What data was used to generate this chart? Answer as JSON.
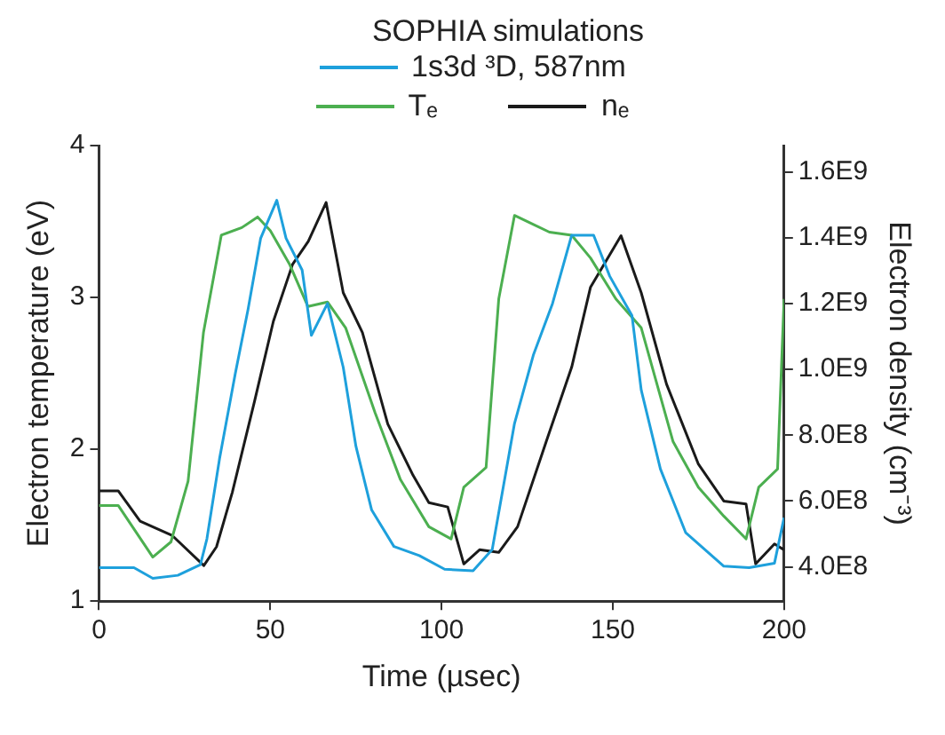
{
  "chart_data": {
    "type": "line",
    "title": "SOPHIA simulations",
    "xlabel": "Time (µsec)",
    "ylabel": "Electron temperature (eV)",
    "y2label": "Electron density (cm⁻³)",
    "xlim": [
      0,
      200
    ],
    "xticks": [
      0,
      50,
      100,
      150,
      200
    ],
    "ylim": [
      1,
      4
    ],
    "yticks": [
      1,
      2,
      3,
      4
    ],
    "y2lim": [
      296000000,
      1680000000
    ],
    "y2ticks": [
      {
        "value": 400000000,
        "label": "4.0E8"
      },
      {
        "value": 600000000,
        "label": "6.0E8"
      },
      {
        "value": 800000000,
        "label": "8.0E8"
      },
      {
        "value": 1000000000,
        "label": "1.0E9"
      },
      {
        "value": 1200000000,
        "label": "1.2E9"
      },
      {
        "value": 1400000000,
        "label": "1.4E9"
      },
      {
        "value": 1600000000,
        "label": "1.6E9"
      }
    ],
    "grid": false,
    "legend": "top",
    "marker": "none",
    "line_style": "solid",
    "series": [
      {
        "name": "1s3d ³D, 587nm",
        "color": "#1ea0dc",
        "x": [
          0,
          10.2,
          15.7,
          23,
          29.6,
          31.5,
          35.2,
          39.8,
          43.5,
          47.2,
          51.9,
          54.6,
          59.3,
          62,
          66.7,
          71.3,
          75,
          79.6,
          86.1,
          93.5,
          100.9,
          109.2,
          114.8,
          121.3,
          126.8,
          132.4,
          138,
          144.4,
          149.1,
          155.6,
          158.3,
          163.9,
          171.3,
          182.4,
          189.8,
          197.2,
          200
        ],
        "values": [
          1.22,
          1.22,
          1.15,
          1.17,
          1.24,
          1.41,
          1.94,
          2.5,
          2.92,
          3.39,
          3.64,
          3.39,
          3.18,
          2.75,
          2.96,
          2.54,
          2.02,
          1.6,
          1.36,
          1.3,
          1.21,
          1.2,
          1.34,
          2.17,
          2.62,
          2.96,
          3.41,
          3.41,
          3.14,
          2.88,
          2.39,
          1.87,
          1.45,
          1.23,
          1.22,
          1.25,
          1.55
        ]
      },
      {
        "name": "Tₑ",
        "color": "#4caf50",
        "x": [
          0,
          5.6,
          15.7,
          21,
          26,
          30.5,
          35.7,
          41.7,
          46.3,
          50,
          55.6,
          61,
          66.7,
          72,
          80.6,
          88,
          96.3,
          102.8,
          106.5,
          113,
          116.7,
          121.3,
          131.5,
          138,
          143.5,
          150.9,
          158.3,
          167.6,
          175,
          182.4,
          188.9,
          192.6,
          198.1,
          200
        ],
        "values": [
          1.63,
          1.63,
          1.29,
          1.39,
          1.79,
          2.77,
          3.41,
          3.46,
          3.53,
          3.44,
          3.22,
          2.94,
          2.97,
          2.8,
          2.24,
          1.8,
          1.49,
          1.41,
          1.75,
          1.88,
          2.99,
          3.54,
          3.43,
          3.41,
          3.26,
          2.99,
          2.8,
          2.05,
          1.75,
          1.56,
          1.41,
          1.75,
          1.87,
          2.99
        ]
      },
      {
        "name": "nₑ",
        "color": "#1a1a1a",
        "axis": "y2",
        "x": [
          0,
          5.6,
          12,
          21.3,
          30.6,
          34.3,
          38.9,
          45.4,
          50.9,
          56.5,
          61.1,
          66.3,
          71.3,
          76.9,
          84.3,
          91.7,
          96.3,
          101.8,
          106.5,
          111.1,
          116.7,
          122.2,
          130.6,
          138,
          143.5,
          152.4,
          158.3,
          165.7,
          175,
          182.4,
          188.9,
          191.7,
          197.2,
          200
        ],
        "values": [
          631000000,
          631000000,
          539000000,
          496000000,
          404000000,
          461000000,
          626000000,
          903000000,
          1146000000,
          1319000000,
          1389000000,
          1507000000,
          1233000000,
          1112000000,
          834000000,
          678000000,
          595000000,
          582000000,
          409000000,
          452000000,
          444000000,
          522000000,
          782000000,
          1007000000,
          1250000000,
          1406000000,
          1233000000,
          955000000,
          712000000,
          600000000,
          591000000,
          409000000,
          470000000,
          452000000
        ]
      }
    ]
  }
}
